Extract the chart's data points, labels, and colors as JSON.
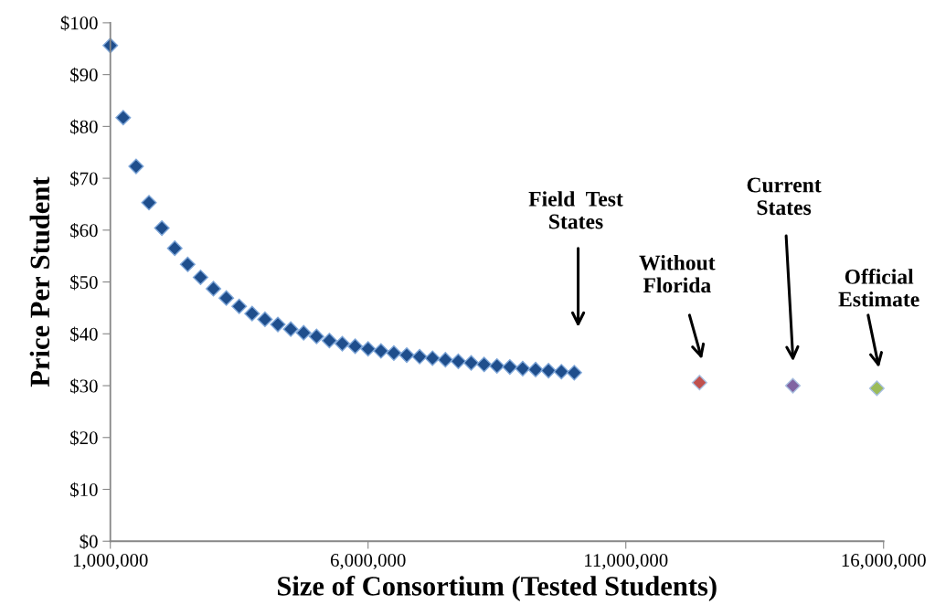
{
  "chart_data": {
    "type": "scatter",
    "xlabel": "Size of Consortium (Tested Students)",
    "ylabel": "Price Per Student",
    "marker": "diamond",
    "grid": false,
    "xlim": [
      1000000,
      16000000
    ],
    "xticks": [
      {
        "value": 1000000,
        "label": "1,000,000"
      },
      {
        "value": 6000000,
        "label": "6,000,000"
      },
      {
        "value": 11000000,
        "label": "11,000,000"
      },
      {
        "value": 16000000,
        "label": "16,000,000"
      }
    ],
    "ylim": [
      0,
      100
    ],
    "yticks": [
      {
        "value": 0,
        "label": "$0"
      },
      {
        "value": 10,
        "label": "$10"
      },
      {
        "value": 20,
        "label": "$20"
      },
      {
        "value": 30,
        "label": "$30"
      },
      {
        "value": 40,
        "label": "$40"
      },
      {
        "value": 50,
        "label": "$50"
      },
      {
        "value": 60,
        "label": "$60"
      },
      {
        "value": 70,
        "label": "$70"
      },
      {
        "value": 80,
        "label": "$80"
      },
      {
        "value": 90,
        "label": "$90"
      },
      {
        "value": 100,
        "label": "$100"
      }
    ],
    "series": [
      {
        "color": "#1f4e8c",
        "x": [
          1000000,
          1250000,
          1500000,
          1750000,
          2000000,
          2250000,
          2500000,
          2750000,
          3000000,
          3250000,
          3500000,
          3750000,
          4000000,
          4250000,
          4500000,
          4750000,
          5000000,
          5250000,
          5500000,
          5750000,
          6000000,
          6250000,
          6500000,
          6750000,
          7000000,
          7250000,
          7500000,
          7750000,
          8000000,
          8250000,
          8500000,
          8750000,
          9000000,
          9250000,
          9500000,
          9750000,
          10000000
        ],
        "values": [
          95.6,
          81.7,
          72.3,
          65.3,
          60.4,
          56.5,
          53.4,
          50.9,
          48.7,
          46.9,
          45.3,
          43.9,
          42.8,
          41.8,
          40.9,
          40.2,
          39.5,
          38.7,
          38.1,
          37.6,
          37.1,
          36.7,
          36.3,
          35.9,
          35.6,
          35.3,
          35.0,
          34.7,
          34.4,
          34.1,
          33.8,
          33.6,
          33.3,
          33.1,
          32.9,
          32.7,
          32.5
        ]
      },
      {
        "color": "#c0504d",
        "x": [
          12430000
        ],
        "values": [
          30.6
        ]
      },
      {
        "color": "#8064a2",
        "x": [
          14240000
        ],
        "values": [
          30.0
        ]
      },
      {
        "color": "#9bbb59",
        "x": [
          15870000
        ],
        "values": [
          29.5
        ]
      }
    ],
    "annotations": [
      "Field  Test\nStates",
      "Without\nFlorida",
      "Current\nStates",
      "Official\nEstimate"
    ]
  }
}
